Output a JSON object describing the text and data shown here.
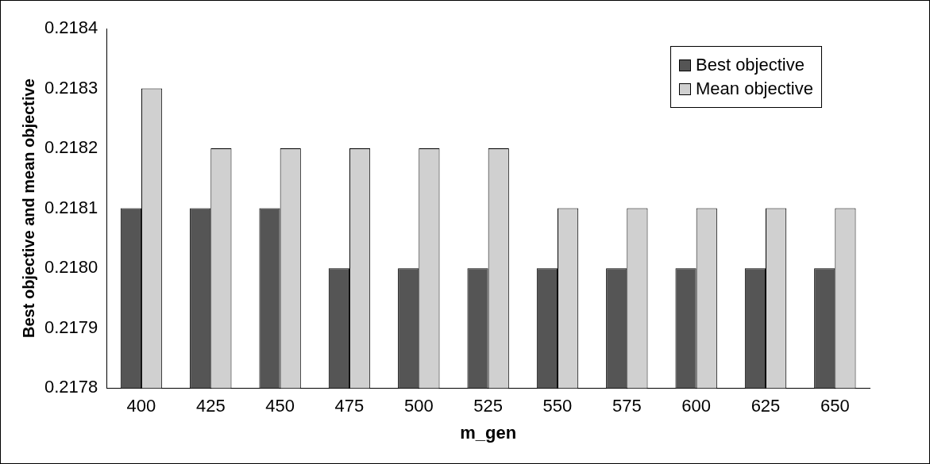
{
  "chart_data": {
    "type": "bar",
    "xlabel": "m_gen",
    "ylabel": "Best objective and mean objective",
    "categories": [
      "400",
      "425",
      "450",
      "475",
      "500",
      "525",
      "550",
      "575",
      "600",
      "625",
      "650"
    ],
    "series": [
      {
        "name": "Best objective",
        "color": "#555555",
        "values": [
          0.2181,
          0.2181,
          0.2181,
          0.218,
          0.218,
          0.218,
          0.218,
          0.218,
          0.218,
          0.218,
          0.218
        ]
      },
      {
        "name": "Mean objective",
        "color": "#d0d0d0",
        "values": [
          0.2183,
          0.2182,
          0.2182,
          0.2182,
          0.2182,
          0.2182,
          0.2181,
          0.2181,
          0.2181,
          0.2181,
          0.2181
        ]
      }
    ],
    "ylim": [
      0.2178,
      0.2184
    ],
    "yticks": [
      0.2178,
      0.2179,
      {
        "value": 0.218,
        "label": "0.2180"
      },
      0.2181,
      0.2182,
      0.2183,
      0.2184
    ],
    "grid": false,
    "legend": "top right"
  }
}
